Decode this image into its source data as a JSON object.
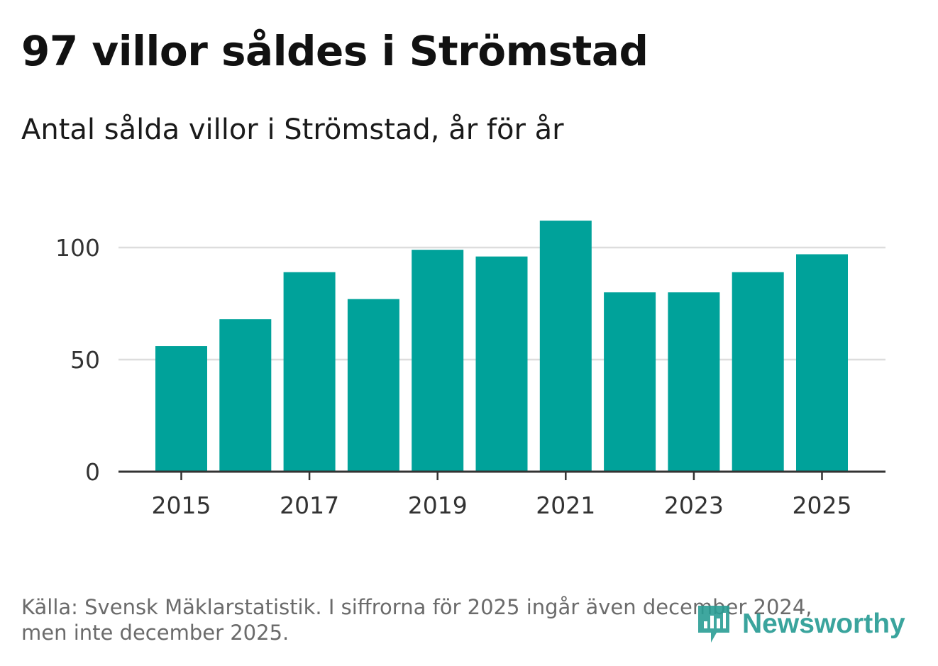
{
  "header": {
    "title": "97 villor såldes i Strömstad",
    "subtitle": "Antal sålda villor i Strömstad, år för år"
  },
  "footer": {
    "source_line1": "Källa: Svensk Mäklarstatistik. I siffrorna för 2025 ingår även december 2024,",
    "source_line2": "men inte december 2025."
  },
  "brand": {
    "name": "Newsworthy",
    "icon": "newsworthy-logo-icon",
    "color": "#2a9d95"
  },
  "colors": {
    "bar": "#00a29a",
    "grid": "#dddddd",
    "axis": "#333333"
  },
  "chart_data": {
    "type": "bar",
    "title": "97 villor såldes i Strömstad",
    "subtitle": "Antal sålda villor i Strömstad, år för år",
    "xlabel": "",
    "ylabel": "",
    "categories": [
      "2015",
      "2016",
      "2017",
      "2018",
      "2019",
      "2020",
      "2021",
      "2022",
      "2023",
      "2024",
      "2025"
    ],
    "values": [
      56,
      68,
      89,
      77,
      99,
      96,
      112,
      80,
      80,
      89,
      97
    ],
    "x_tick_labels": [
      "2015",
      "2017",
      "2019",
      "2021",
      "2023",
      "2025"
    ],
    "y_ticks": [
      0,
      50,
      100
    ],
    "ylim": [
      0,
      125
    ],
    "grid": true,
    "legend": "none"
  }
}
